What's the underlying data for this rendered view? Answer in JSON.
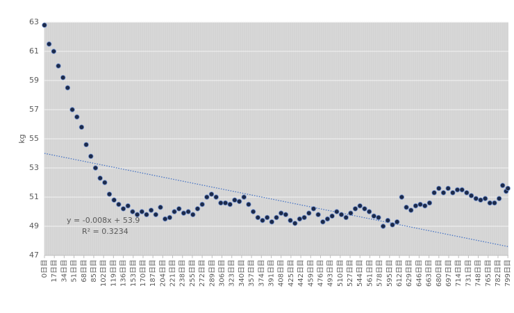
{
  "chart_data": {
    "type": "scatter",
    "y_label": "kg",
    "annotations": [
      "y = -0.008x + 53.9",
      "R² = 0.3234"
    ],
    "ylim": [
      47,
      63
    ],
    "yticks": [
      47,
      49,
      51,
      53,
      55,
      57,
      59,
      61,
      63
    ],
    "xlim": [
      0,
      800
    ],
    "xticks": [
      {
        "value": 0,
        "label": "0日目"
      },
      {
        "value": 17,
        "label": "17日目"
      },
      {
        "value": 34,
        "label": "34日目"
      },
      {
        "value": 51,
        "label": "51日目"
      },
      {
        "value": 68,
        "label": "68日目"
      },
      {
        "value": 85,
        "label": "85日目"
      },
      {
        "value": 102,
        "label": "102日目"
      },
      {
        "value": 119,
        "label": "119日目"
      },
      {
        "value": 136,
        "label": "136日目"
      },
      {
        "value": 153,
        "label": "153日目"
      },
      {
        "value": 170,
        "label": "170日目"
      },
      {
        "value": 187,
        "label": "187日目"
      },
      {
        "value": 204,
        "label": "204日目"
      },
      {
        "value": 221,
        "label": "221日目"
      },
      {
        "value": 238,
        "label": "238日目"
      },
      {
        "value": 255,
        "label": "255日目"
      },
      {
        "value": 272,
        "label": "272日目"
      },
      {
        "value": 289,
        "label": "289日目"
      },
      {
        "value": 306,
        "label": "306日目"
      },
      {
        "value": 323,
        "label": "323日目"
      },
      {
        "value": 340,
        "label": "340日目"
      },
      {
        "value": 357,
        "label": "357日目"
      },
      {
        "value": 374,
        "label": "374日目"
      },
      {
        "value": 391,
        "label": "391日目"
      },
      {
        "value": 408,
        "label": "408日目"
      },
      {
        "value": 425,
        "label": "425日目"
      },
      {
        "value": 442,
        "label": "442日目"
      },
      {
        "value": 459,
        "label": "459日目"
      },
      {
        "value": 476,
        "label": "476日目"
      },
      {
        "value": 493,
        "label": "493日目"
      },
      {
        "value": 510,
        "label": "510日目"
      },
      {
        "value": 527,
        "label": "527日目"
      },
      {
        "value": 544,
        "label": "544日目"
      },
      {
        "value": 561,
        "label": "561日目"
      },
      {
        "value": 578,
        "label": "578日目"
      },
      {
        "value": 595,
        "label": "595日目"
      },
      {
        "value": 612,
        "label": "612日目"
      },
      {
        "value": 629,
        "label": "629日目"
      },
      {
        "value": 646,
        "label": "646日目"
      },
      {
        "value": 663,
        "label": "663日目"
      },
      {
        "value": 680,
        "label": "680日目"
      },
      {
        "value": 697,
        "label": "697日目"
      },
      {
        "value": 714,
        "label": "714日目"
      },
      {
        "value": 731,
        "label": "731日目"
      },
      {
        "value": 748,
        "label": "748日目"
      },
      {
        "value": 765,
        "label": "765日目"
      },
      {
        "value": 782,
        "label": "782日目"
      },
      {
        "value": 799,
        "label": "799日目"
      }
    ],
    "grid": true,
    "series": [
      {
        "color": "#1c2a4a",
        "x": [
          0,
          8,
          16,
          24,
          32,
          40,
          48,
          56,
          64,
          72,
          80,
          88,
          96,
          104,
          112,
          120,
          128,
          136,
          144,
          152,
          160,
          168,
          176,
          184,
          192,
          200,
          208,
          216,
          224,
          232,
          240,
          248,
          256,
          264,
          272,
          280,
          288,
          296,
          304,
          312,
          320,
          328,
          336,
          344,
          352,
          360,
          368,
          376,
          384,
          392,
          400,
          408,
          416,
          424,
          432,
          440,
          448,
          456,
          464,
          472,
          480,
          488,
          496,
          504,
          512,
          520,
          528,
          536,
          544,
          552,
          560,
          568,
          576,
          584,
          592,
          600,
          608,
          616,
          624,
          632,
          640,
          648,
          656,
          664,
          672,
          680,
          688,
          696,
          704,
          712,
          720,
          728,
          736,
          744,
          752,
          760,
          768,
          776,
          784,
          790,
          796,
          799
        ],
        "values": [
          62.8,
          61.5,
          61.0,
          60.0,
          59.2,
          58.5,
          57.0,
          56.5,
          55.8,
          54.6,
          53.8,
          53.0,
          52.3,
          52.0,
          51.2,
          50.8,
          50.5,
          50.2,
          50.4,
          50.0,
          49.8,
          50.0,
          49.8,
          50.1,
          49.8,
          50.3,
          49.5,
          49.6,
          50.0,
          50.2,
          49.9,
          50.0,
          49.8,
          50.2,
          50.5,
          51.0,
          51.2,
          51.0,
          50.6,
          50.6,
          50.5,
          50.8,
          50.7,
          51.0,
          50.5,
          50.0,
          49.6,
          49.4,
          49.6,
          49.3,
          49.6,
          49.9,
          49.8,
          49.4,
          49.2,
          49.5,
          49.6,
          49.9,
          50.2,
          49.8,
          49.3,
          49.5,
          49.7,
          50.0,
          49.8,
          49.6,
          49.9,
          50.2,
          50.4,
          50.2,
          50.0,
          49.7,
          49.6,
          49.0,
          49.4,
          49.1,
          49.3,
          51.0,
          50.3,
          50.1,
          50.4,
          50.5,
          50.4,
          50.6,
          51.3,
          51.6,
          51.3,
          51.6,
          51.3,
          51.5,
          51.5,
          51.3,
          51.1,
          50.9,
          50.8,
          50.9,
          50.6,
          50.6,
          50.9,
          51.8,
          51.4,
          51.6
        ]
      },
      {
        "color": "#4472c4",
        "line": "dotted",
        "x": [
          0,
          800
        ],
        "values": [
          54.0,
          47.6
        ]
      }
    ]
  }
}
